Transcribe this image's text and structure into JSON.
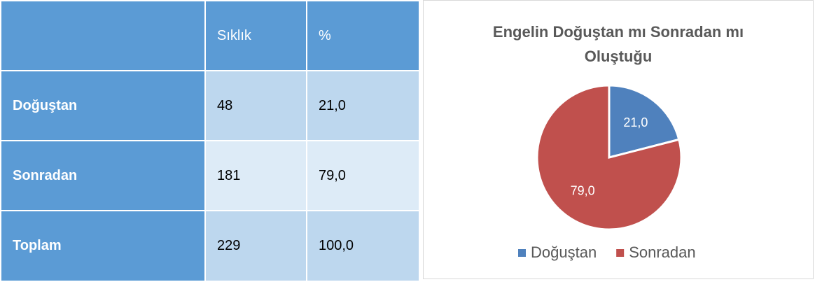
{
  "table": {
    "header": [
      "Sıklık",
      "%"
    ],
    "rows": [
      [
        "Doğuştan",
        "48",
        "21,0"
      ],
      [
        "Sonradan",
        "181",
        "79,0"
      ],
      [
        "Toplam",
        "229",
        "100,0"
      ]
    ]
  },
  "chart_data": {
    "type": "pie",
    "title": "Engelin Doğuştan mı Sonradan mı Oluştuğu",
    "categories": [
      "Doğuştan",
      "Sonradan"
    ],
    "values": [
      21,
      79
    ],
    "value_labels": [
      "21,0",
      "79,0"
    ],
    "colors": [
      "#4f81bd",
      "#c0504d"
    ],
    "legend": "bottom"
  }
}
